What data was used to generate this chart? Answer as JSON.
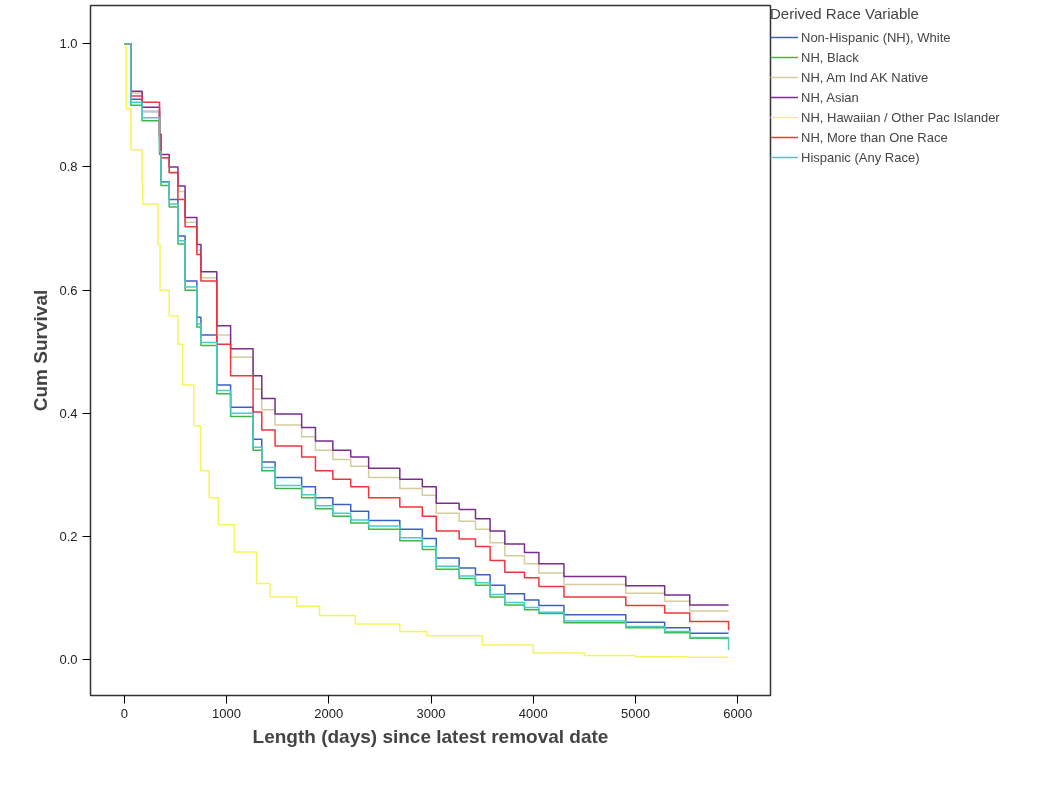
{
  "chart_data": {
    "type": "step",
    "xlabel": "Length (days) since latest removal date",
    "ylabel": "Cum Survival",
    "legend_title": "Derived Race Variable",
    "xlim": [
      -330,
      6320
    ],
    "ylim": [
      -0.058,
      1.062
    ],
    "xticks": [
      0,
      1000,
      2000,
      3000,
      4000,
      5000,
      6000
    ],
    "yticks": [
      {
        "value": 0,
        "label": "0.0"
      },
      {
        "value": 0.2,
        "label": "0.2"
      },
      {
        "value": 0.4,
        "label": "0.4"
      },
      {
        "value": 0.6,
        "label": "0.6"
      },
      {
        "value": 0.8,
        "label": "0.8"
      },
      {
        "value": 1,
        "label": "1.0"
      }
    ],
    "grid": false,
    "legend": "right",
    "marker": "none",
    "line_style": "solid",
    "x": [
      0,
      65,
      175,
      345,
      360,
      440,
      525,
      595,
      710,
      750,
      905,
      1040,
      1260,
      1345,
      1475,
      1735,
      1870,
      2040,
      2215,
      2390,
      2695,
      2915,
      3051,
      3275,
      3435,
      3578,
      3722,
      3914,
      4055,
      4300,
      4905,
      5285,
      5530,
      5910
    ],
    "series": [
      {
        "name": "Non-Hispanic (NH), White",
        "color": "#3d5fc4",
        "values": [
          1.0,
          0.91,
          0.89,
          0.843,
          0.776,
          0.747,
          0.688,
          0.615,
          0.556,
          0.527,
          0.446,
          0.41,
          0.358,
          0.321,
          0.296,
          0.281,
          0.263,
          0.252,
          0.241,
          0.226,
          0.212,
          0.197,
          0.165,
          0.149,
          0.138,
          0.121,
          0.107,
          0.097,
          0.088,
          0.073,
          0.061,
          0.052,
          0.043,
          0.043
        ]
      },
      {
        "name": "NH, Black",
        "color": "#3cb84a",
        "values": [
          1.0,
          0.9,
          0.875,
          0.82,
          0.77,
          0.735,
          0.675,
          0.6,
          0.54,
          0.51,
          0.432,
          0.395,
          0.34,
          0.307,
          0.278,
          0.263,
          0.245,
          0.233,
          0.222,
          0.212,
          0.193,
          0.179,
          0.147,
          0.132,
          0.121,
          0.102,
          0.089,
          0.081,
          0.075,
          0.06,
          0.052,
          0.044,
          0.035,
          0.035
        ]
      },
      {
        "name": "NH, Am Ind AK Native",
        "color": "#d4cc9c",
        "values": [
          1.0,
          0.92,
          0.89,
          0.845,
          0.815,
          0.79,
          0.76,
          0.71,
          0.665,
          0.62,
          0.527,
          0.491,
          0.439,
          0.406,
          0.381,
          0.362,
          0.34,
          0.325,
          0.314,
          0.296,
          0.278,
          0.267,
          0.238,
          0.225,
          0.212,
          0.19,
          0.169,
          0.156,
          0.141,
          0.122,
          0.108,
          0.095,
          0.079,
          0.079
        ]
      },
      {
        "name": "NH, Asian",
        "color": "#7b2d8e",
        "values": [
          1.0,
          0.923,
          0.897,
          0.853,
          0.82,
          0.8,
          0.769,
          0.718,
          0.674,
          0.63,
          0.542,
          0.505,
          0.461,
          0.424,
          0.399,
          0.377,
          0.355,
          0.34,
          0.329,
          0.311,
          0.293,
          0.281,
          0.254,
          0.244,
          0.229,
          0.209,
          0.188,
          0.174,
          0.156,
          0.135,
          0.12,
          0.105,
          0.089,
          0.089
        ]
      },
      {
        "name": "NH, Hawaiian / Other Pac Islander",
        "color": "#f5f55a",
        "x": [
          0,
          20,
          65,
          175,
          180,
          330,
          350,
          440,
          525,
          570,
          680,
          745,
          830,
          920,
          1075,
          1295,
          1425,
          1690,
          1910,
          2260,
          2695,
          2960,
          3500,
          4000,
          4500,
          5000,
          5500,
          5900
        ],
        "values": [
          1.0,
          0.894,
          0.828,
          0.776,
          0.74,
          0.674,
          0.6,
          0.558,
          0.512,
          0.446,
          0.38,
          0.307,
          0.263,
          0.219,
          0.175,
          0.124,
          0.102,
          0.087,
          0.072,
          0.058,
          0.046,
          0.039,
          0.024,
          0.011,
          0.007,
          0.005,
          0.004,
          0.003
        ]
      },
      {
        "name": "NH, More than One Race",
        "color": "#f0353b",
        "values": [
          1.0,
          0.915,
          0.905,
          0.85,
          0.815,
          0.791,
          0.747,
          0.703,
          0.658,
          0.615,
          0.512,
          0.461,
          0.402,
          0.373,
          0.347,
          0.329,
          0.307,
          0.293,
          0.281,
          0.263,
          0.248,
          0.233,
          0.209,
          0.196,
          0.184,
          0.161,
          0.142,
          0.133,
          0.119,
          0.102,
          0.088,
          0.076,
          0.062,
          0.048
        ]
      },
      {
        "name": "Hispanic (Any Race)",
        "color": "#4cc9c9",
        "values": [
          1.0,
          0.905,
          0.88,
          0.825,
          0.775,
          0.74,
          0.68,
          0.605,
          0.545,
          0.515,
          0.437,
          0.4,
          0.345,
          0.312,
          0.283,
          0.268,
          0.25,
          0.238,
          0.227,
          0.217,
          0.198,
          0.184,
          0.152,
          0.136,
          0.125,
          0.106,
          0.093,
          0.085,
          0.077,
          0.063,
          0.054,
          0.046,
          0.036,
          0.016
        ]
      }
    ]
  }
}
